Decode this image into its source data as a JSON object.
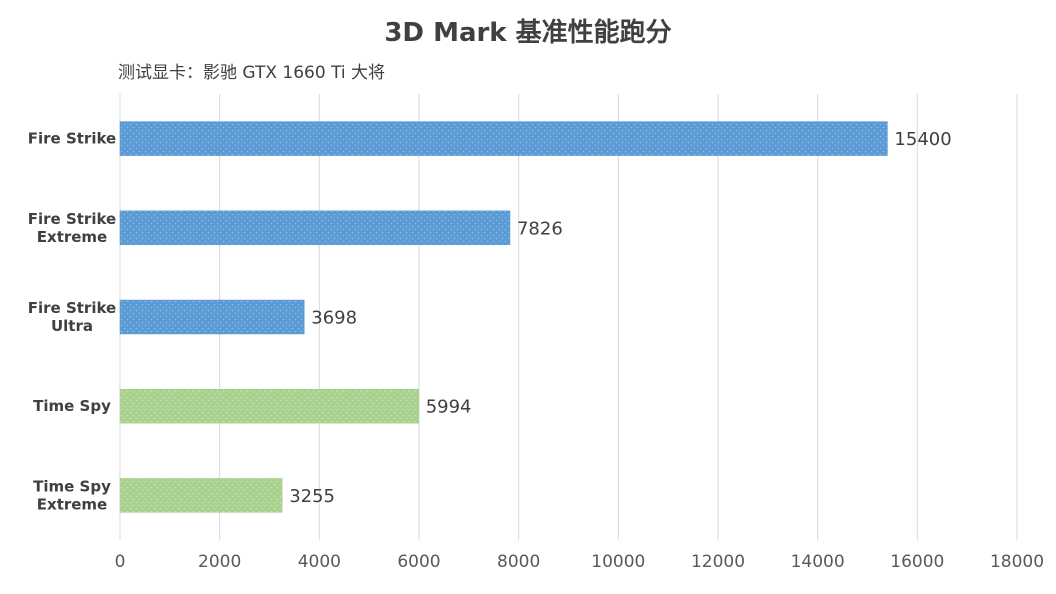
{
  "colors": {
    "fire_strike": "#5b9bd5",
    "time_spy": "#a9d18e",
    "grid": "#d9d9d9",
    "text": "#404040"
  },
  "chart_data": {
    "type": "bar",
    "orientation": "horizontal",
    "title": "3D Mark 基准性能跑分",
    "subtitle": "测试显卡：影驰 GTX 1660 Ti 大将",
    "categories": [
      [
        "Fire Strike"
      ],
      [
        "Fire Strike",
        "Extreme"
      ],
      [
        "Fire Strike",
        "Ultra"
      ],
      [
        "Time Spy"
      ],
      [
        "Time Spy",
        "Extreme"
      ]
    ],
    "values": [
      15400,
      7826,
      3698,
      5994,
      3255
    ],
    "bar_color_keys": [
      "fire_strike",
      "fire_strike",
      "fire_strike",
      "time_spy",
      "time_spy"
    ],
    "xlim": [
      0,
      18000
    ],
    "xticks": [
      0,
      2000,
      4000,
      6000,
      8000,
      10000,
      12000,
      14000,
      16000,
      18000
    ],
    "grid": "vertical",
    "legend": "none"
  }
}
